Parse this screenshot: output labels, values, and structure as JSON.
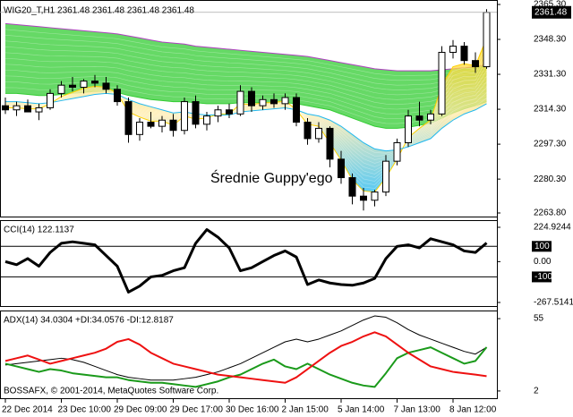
{
  "chart_data": [
    {
      "type": "candlestick",
      "title": "WIG20_T,H1  2361.48 2361.48 2361.48 2361.48",
      "annotation": "Średnie Guppy'ego",
      "categories": [
        "22 Dec 2014",
        null,
        null,
        null,
        null,
        "23 Dec 10:00",
        null,
        null,
        null,
        null,
        "29 Dec 09:00",
        null,
        null,
        null,
        null,
        "29 Dec 17:00",
        null,
        null,
        null,
        null,
        "30 Dec 16:00",
        null,
        null,
        null,
        null,
        "2 Jan 15:00",
        null,
        null,
        null,
        null,
        "5 Jan 14:00",
        null,
        null,
        null,
        null,
        "7 Jan 13:00",
        null,
        null,
        null,
        null,
        "8 Jan 12:00",
        null,
        null,
        null
      ],
      "open": [
        2316,
        2314,
        2316,
        2313,
        2315,
        2322,
        2326,
        2325,
        2328,
        2327,
        2324,
        2318,
        2302,
        2308,
        2306,
        2309,
        2304,
        2318,
        2307,
        2311,
        2314,
        2312,
        2323,
        2316,
        2319,
        2317,
        2320,
        2308,
        2300,
        2305,
        2290,
        2281,
        2272,
        2270,
        2274,
        2289,
        2298,
        2311,
        2309,
        2312,
        2342,
        2345,
        2338,
        2335
      ],
      "high": [
        2320,
        2318,
        2319,
        2317,
        2324,
        2328,
        2330,
        2329,
        2331,
        2330,
        2326,
        2320,
        2310,
        2313,
        2311,
        2312,
        2320,
        2321,
        2313,
        2316,
        2317,
        2326,
        2325,
        2321,
        2322,
        2322,
        2322,
        2310,
        2308,
        2306,
        2294,
        2283,
        2276,
        2275,
        2292,
        2300,
        2314,
        2318,
        2314,
        2345,
        2348,
        2347,
        2342,
        2363
      ],
      "low": [
        2312,
        2311,
        2313,
        2309,
        2314,
        2320,
        2323,
        2322,
        2325,
        2322,
        2316,
        2298,
        2299,
        2305,
        2303,
        2301,
        2302,
        2305,
        2304,
        2308,
        2310,
        2311,
        2313,
        2314,
        2315,
        2314,
        2306,
        2297,
        2298,
        2286,
        2278,
        2268,
        2265,
        2267,
        2272,
        2287,
        2296,
        2306,
        2307,
        2311,
        2339,
        2336,
        2332,
        2334
      ],
      "close": [
        2314,
        2316,
        2313,
        2315,
        2322,
        2326,
        2325,
        2328,
        2327,
        2324,
        2318,
        2302,
        2308,
        2306,
        2309,
        2304,
        2318,
        2307,
        2311,
        2314,
        2312,
        2323,
        2316,
        2319,
        2317,
        2320,
        2308,
        2300,
        2305,
        2290,
        2281,
        2272,
        2270,
        2274,
        2289,
        2298,
        2311,
        2309,
        2312,
        2342,
        2345,
        2338,
        2335,
        2361.48
      ],
      "up_color": "#ffffff",
      "down_color": "#000000",
      "bands": [
        {
          "fast": [
            2322,
            2322,
            2321.5,
            2321,
            2321,
            2321.5,
            2322,
            2322.5,
            2323,
            2323,
            2322.5,
            2321,
            2320,
            2319,
            2318.5,
            2318,
            2318,
            2317.5,
            2317,
            2317,
            2317,
            2317.5,
            2317.5,
            2317.5,
            2317.5,
            2317.5,
            2317,
            2316,
            2315,
            2314,
            2312,
            2310,
            2308,
            2306,
            2305,
            2305,
            2305.5,
            2306.5,
            2307.5,
            2310,
            2312.5,
            2314.5,
            2316,
            2318
          ],
          "slow": [
            2356,
            2355.5,
            2355,
            2354.5,
            2354,
            2353.5,
            2353,
            2352.5,
            2352,
            2351.5,
            2351,
            2350,
            2349,
            2348,
            2347,
            2346.5,
            2346,
            2345,
            2344.5,
            2344,
            2343.5,
            2343,
            2342.5,
            2342,
            2341.5,
            2341,
            2340.5,
            2340,
            2339,
            2338,
            2337,
            2336,
            2335,
            2334,
            2333.5,
            2333,
            2333,
            2333,
            2333,
            2333.5,
            2334,
            2334.5,
            2335,
            2336
          ],
          "colors": [
            "#33cc33",
            "#ffd0e8",
            "#b040c0"
          ]
        },
        {
          "fast": [
            2315,
            2315,
            2314.5,
            2314.5,
            2317,
            2320.5,
            2322.5,
            2324.5,
            2325.5,
            2325,
            2322,
            2313,
            2310.5,
            2308.5,
            2308.5,
            2306.5,
            2311,
            2309.5,
            2310,
            2312,
            2312,
            2317,
            2316.5,
            2317.5,
            2317.5,
            2318.5,
            2314,
            2307,
            2306,
            2298,
            2289.5,
            2280,
            2274.5,
            2274,
            2281,
            2290,
            2300.5,
            2305,
            2309,
            2326,
            2335,
            2336.5,
            2335.5,
            2349
          ],
          "slow": [
            2318,
            2318,
            2317.5,
            2317,
            2317.5,
            2318.5,
            2319.5,
            2320.5,
            2321.5,
            2322,
            2321.5,
            2319,
            2317,
            2315.5,
            2314,
            2312.5,
            2313,
            2312,
            2311.5,
            2311.5,
            2311.5,
            2313,
            2313.5,
            2314,
            2314.5,
            2315,
            2314,
            2312,
            2311,
            2309,
            2306,
            2302,
            2298,
            2295,
            2294,
            2294.5,
            2296,
            2298,
            2300,
            2305,
            2309,
            2312,
            2314,
            2317
          ],
          "colors": [
            "#ffd000",
            "#ffe9a0",
            "#20b8f0"
          ]
        }
      ],
      "last_price": 2361.48,
      "ylim": [
        2262.06,
        2367.04
      ],
      "yticks": [
        {
          "value": 2365.3,
          "label": "2365.30"
        },
        {
          "value": 2348.3,
          "label": "2348.30"
        },
        {
          "value": 2331.3,
          "label": "2331.30"
        },
        {
          "value": 2314.3,
          "label": "2314.30"
        },
        {
          "value": 2297.3,
          "label": "2297.30"
        },
        {
          "value": 2280.3,
          "label": "2280.30"
        },
        {
          "value": 2263.8,
          "label": "2263.80"
        }
      ]
    },
    {
      "type": "line",
      "title": "CCI(14) 122.1137",
      "values": [
        0,
        -20,
        20,
        -30,
        60,
        120,
        130,
        120,
        110,
        40,
        -30,
        -200,
        -160,
        -100,
        -90,
        -60,
        -40,
        120,
        210,
        160,
        90,
        -60,
        -40,
        0,
        40,
        70,
        30,
        -150,
        -120,
        -140,
        -150,
        -155,
        -140,
        -110,
        20,
        100,
        110,
        90,
        150,
        130,
        110,
        70,
        60,
        122.1137
      ],
      "color": "#000000",
      "levels": [
        100,
        -100
      ],
      "ylim": [
        -290.96,
        265.96
      ],
      "yticks": [
        224.9244,
        {
          "value": 0,
          "label": "0.00"
        },
        -267.5141
      ]
    },
    {
      "type": "line",
      "title": "ADX(14) 34.0304 +DI:34.0576 -DI:12.8187",
      "annotation": "BOSSAFX, © 2001-2014, MetaQuotes Software Corp.",
      "series": [
        {
          "color": "#000000",
          "values": [
            21,
            22,
            23,
            24,
            25,
            26,
            25,
            23,
            20,
            17,
            14,
            12,
            11,
            10,
            10,
            10,
            11,
            12,
            14,
            16,
            19,
            22,
            26,
            30,
            34,
            38,
            40,
            38,
            40,
            43,
            46,
            50,
            54,
            57,
            56,
            52,
            47,
            43,
            40,
            37,
            34,
            31,
            29,
            34.0304
          ]
        },
        {
          "color": "#1a9a1a",
          "values": [
            22,
            20,
            18,
            16,
            18,
            17,
            15,
            14,
            13,
            12,
            12,
            10,
            9,
            8,
            8,
            7,
            6,
            5,
            7,
            9,
            12,
            14,
            18,
            22,
            25,
            20,
            18,
            22,
            18,
            14,
            11,
            8,
            6,
            5,
            15,
            26,
            30,
            32,
            34,
            30,
            26,
            22,
            24,
            34.0576
          ]
        },
        {
          "color": "#ee1111",
          "values": [
            24,
            26,
            28,
            25,
            22,
            24,
            26,
            28,
            30,
            33,
            38,
            40,
            36,
            30,
            26,
            22,
            20,
            18,
            16,
            14,
            13,
            12,
            11,
            10,
            9,
            8,
            12,
            18,
            24,
            30,
            35,
            38,
            42,
            45,
            42,
            36,
            30,
            25,
            20,
            18,
            16,
            15,
            14,
            12.8187
          ]
        }
      ],
      "ylim": [
        -3.3,
        60.3
      ],
      "yticks": [
        55,
        2
      ]
    }
  ]
}
